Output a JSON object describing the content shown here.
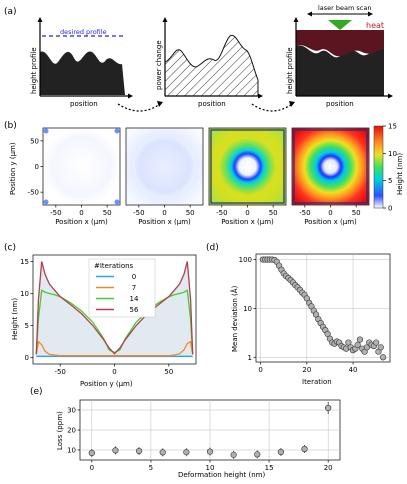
{
  "panel_labels": {
    "a": "(a)",
    "b": "(b)",
    "c": "(c)",
    "d": "(d)",
    "e": "(e)"
  },
  "panel_a": {
    "desired_profile_label": "desired profile",
    "height_profile_label": "height profile",
    "power_change_label": "power change",
    "position_label": "position",
    "laser_beam_scan_label": "laser beam scan",
    "heat_label": "heat",
    "colors": {
      "desired": "#2222ee",
      "heat": "#5a1520",
      "laser": "#33aa22"
    }
  },
  "chart_data": [
    {
      "id": "b",
      "type": "heatmap",
      "panels": 4,
      "xlabel": "Position x (μm)",
      "ylabel": "Position y (μm)",
      "xticks": [
        -50,
        0,
        50
      ],
      "yticks": [
        -50,
        0,
        50
      ],
      "colorbar": {
        "label": "Height (nm)",
        "ticks": [
          0,
          5,
          10,
          15
        ],
        "range": [
          0,
          15
        ]
      }
    },
    {
      "id": "c",
      "type": "line",
      "xlabel": "Position y (μm)",
      "ylabel": "Height (nm)",
      "xlim": [
        -75,
        75
      ],
      "ylim": [
        -1,
        16
      ],
      "xticks": [
        -50,
        0,
        50
      ],
      "yticks": [
        0,
        5,
        10,
        15
      ],
      "legend_title": "#Iterations",
      "legend_position": "top-center",
      "x": [
        -72,
        -70,
        -67,
        -64,
        -60,
        -55,
        -50,
        -40,
        -30,
        -20,
        -10,
        -5,
        0,
        5,
        10,
        20,
        30,
        40,
        50,
        55,
        60,
        64,
        67,
        70,
        72
      ],
      "series": [
        {
          "name": "0",
          "color": "#3aa0e0",
          "values": [
            0.2,
            0.2,
            0.2,
            0.2,
            0.2,
            0.2,
            0.2,
            0.2,
            0.2,
            0.2,
            0.2,
            0.2,
            0.2,
            0.2,
            0.2,
            0.2,
            0.2,
            0.2,
            0.2,
            0.2,
            0.2,
            0.2,
            0.2,
            0.2,
            0.2
          ]
        },
        {
          "name": "7",
          "color": "#f08a30",
          "values": [
            0.5,
            2.5,
            2.0,
            1.0,
            0.5,
            0.4,
            0.3,
            0.3,
            0.3,
            0.3,
            0.3,
            0.3,
            0.3,
            0.3,
            0.3,
            0.3,
            0.3,
            0.3,
            0.3,
            0.4,
            0.6,
            1.2,
            2.2,
            2.5,
            0.5
          ]
        },
        {
          "name": "14",
          "color": "#44cc33",
          "values": [
            0.5,
            6.0,
            10.5,
            10.2,
            10.0,
            9.8,
            9.5,
            8.5,
            7.2,
            5.5,
            3.0,
            1.2,
            0.8,
            1.2,
            3.0,
            5.5,
            7.2,
            8.5,
            9.5,
            9.8,
            10.0,
            10.2,
            10.5,
            6.0,
            0.5
          ]
        },
        {
          "name": "56",
          "color": "#b04050",
          "values": [
            0.5,
            9.0,
            15.0,
            13.0,
            11.5,
            10.5,
            9.5,
            8.2,
            6.8,
            5.0,
            2.8,
            1.5,
            0.6,
            1.5,
            2.8,
            5.0,
            6.8,
            8.2,
            9.5,
            10.5,
            11.5,
            13.0,
            15.0,
            9.0,
            0.5
          ]
        }
      ]
    },
    {
      "id": "d",
      "type": "scatter",
      "xlabel": "Iteration",
      "ylabel": "Mean deviation (Å)",
      "yscale": "log",
      "xlim": [
        -2,
        56
      ],
      "ylim": [
        0.8,
        130
      ],
      "xticks": [
        0,
        20,
        40
      ],
      "yticks": [
        1,
        10,
        100
      ],
      "grid": true,
      "x": [
        1,
        2,
        3,
        4,
        5,
        6,
        7,
        8,
        9,
        10,
        11,
        12,
        13,
        14,
        15,
        16,
        17,
        18,
        19,
        20,
        21,
        22,
        23,
        24,
        25,
        26,
        27,
        28,
        29,
        30,
        31,
        32,
        33,
        34,
        35,
        36,
        37,
        38,
        39,
        40,
        41,
        42,
        43,
        44,
        45,
        46,
        47,
        48,
        49,
        50,
        51,
        52,
        53
      ],
      "y": [
        100,
        100,
        100,
        100,
        100,
        98,
        90,
        75,
        62,
        52,
        46,
        42,
        38,
        34,
        30,
        27,
        24,
        21,
        19,
        16,
        13,
        11,
        9,
        7.5,
        6,
        5,
        4.2,
        3.6,
        3,
        2.4,
        2,
        1.9,
        2.1,
        2,
        1.7,
        1.6,
        1.5,
        2,
        1.6,
        1.4,
        1.5,
        1.8,
        2.3,
        1.5,
        1.3,
        1.6,
        2,
        1.8,
        1.7,
        2,
        1.3,
        1.6,
        1.0
      ]
    },
    {
      "id": "e",
      "type": "scatter",
      "xlabel": "Deformation height (nm)",
      "ylabel": "Loss (ppm)",
      "xlim": [
        -1,
        21
      ],
      "ylim": [
        5,
        35
      ],
      "xticks": [
        0,
        5,
        10,
        15,
        20
      ],
      "yticks": [
        10,
        20,
        30
      ],
      "grid": true,
      "x": [
        0,
        2,
        4,
        6,
        8,
        10,
        12,
        14,
        16,
        18,
        20
      ],
      "y": [
        8.5,
        9.8,
        9.5,
        8.8,
        8.9,
        9.2,
        7.6,
        7.8,
        9.0,
        10.5,
        31
      ],
      "errors": [
        2,
        2,
        2,
        2,
        2,
        2,
        2,
        2,
        2,
        2,
        3
      ]
    }
  ]
}
